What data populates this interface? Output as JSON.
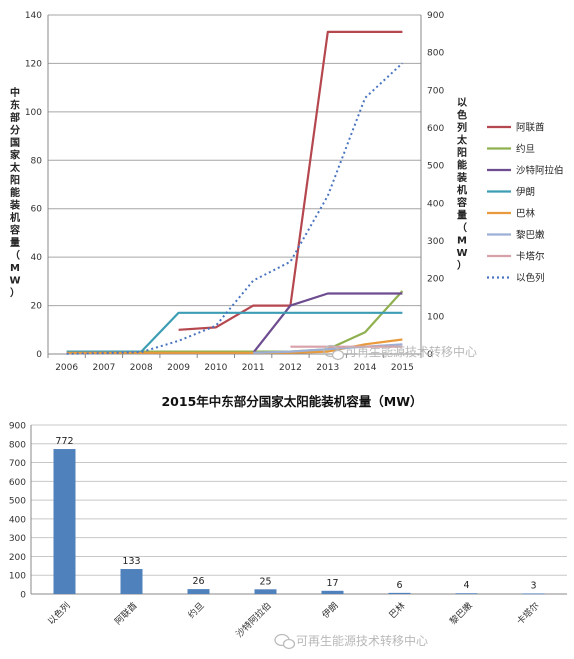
{
  "watermark": "可再生能源技术转移中心",
  "chart_data": [
    {
      "type": "line",
      "title": "",
      "x": [
        2006,
        2007,
        2008,
        2009,
        2010,
        2011,
        2012,
        2013,
        2014,
        2015
      ],
      "ylabel_left": "中东部分国家太阳能装机容量（MW）",
      "ylabel_right": "以色列太阳能装机容量（MW）",
      "ylim_left": [
        0,
        140
      ],
      "ylim_right": [
        0,
        900
      ],
      "yticks_left": [
        0,
        20,
        40,
        60,
        80,
        100,
        120,
        140
      ],
      "yticks_right": [
        0,
        100,
        200,
        300,
        400,
        500,
        600,
        700,
        800,
        900
      ],
      "grid": true,
      "legend_position": "right",
      "series": [
        {
          "name": "阿联酋",
          "axis": "left",
          "color": "#b5474f",
          "dash": false,
          "values": [
            null,
            null,
            null,
            10,
            11,
            20,
            20,
            133,
            133,
            133
          ]
        },
        {
          "name": "约旦",
          "axis": "left",
          "color": "#8fb04f",
          "dash": false,
          "values": [
            1,
            1,
            1,
            1,
            1,
            1,
            1,
            2,
            9,
            26
          ]
        },
        {
          "name": "沙特阿拉伯",
          "axis": "left",
          "color": "#6d4c8f",
          "dash": false,
          "values": [
            null,
            null,
            null,
            null,
            null,
            0.5,
            20,
            25,
            25,
            25
          ]
        },
        {
          "name": "伊朗",
          "axis": "left",
          "color": "#3c9db3",
          "dash": false,
          "values": [
            1,
            1,
            1,
            17,
            17,
            17,
            17,
            17,
            17,
            17
          ]
        },
        {
          "name": "巴林",
          "axis": "left",
          "color": "#e89a3c",
          "dash": false,
          "values": [
            0.5,
            0.5,
            0.5,
            0.5,
            0.5,
            0.5,
            0.5,
            1,
            4,
            6
          ]
        },
        {
          "name": "黎巴嫩",
          "axis": "left",
          "color": "#9cb0d6",
          "dash": false,
          "values": [
            null,
            null,
            null,
            null,
            null,
            0.5,
            1,
            2,
            3,
            4
          ]
        },
        {
          "name": "卡塔尔",
          "axis": "left",
          "color": "#d8a0a8",
          "dash": false,
          "values": [
            null,
            null,
            null,
            null,
            null,
            null,
            3,
            3,
            3,
            3
          ]
        },
        {
          "name": "以色列",
          "axis": "right",
          "color": "#4a74c1",
          "dash": true,
          "values": [
            0.5,
            2,
            5,
            35,
            75,
            195,
            245,
            420,
            680,
            772
          ]
        }
      ]
    },
    {
      "type": "bar",
      "title": "2015年中东部分国家太阳能装机容量（MW）",
      "categories": [
        "以色列",
        "阿联酋",
        "约旦",
        "沙特阿拉伯",
        "伊朗",
        "巴林",
        "黎巴嫩",
        "卡塔尔"
      ],
      "values": [
        772,
        133,
        26,
        25,
        17,
        6,
        4,
        3
      ],
      "data_labels": [
        "772",
        "133",
        "26",
        "25",
        "17",
        "6",
        "4",
        "3"
      ],
      "ylim": [
        0,
        900
      ],
      "yticks": [
        0,
        100,
        200,
        300,
        400,
        500,
        600,
        700,
        800,
        900
      ],
      "color": "#4f81bd",
      "grid": true
    }
  ]
}
